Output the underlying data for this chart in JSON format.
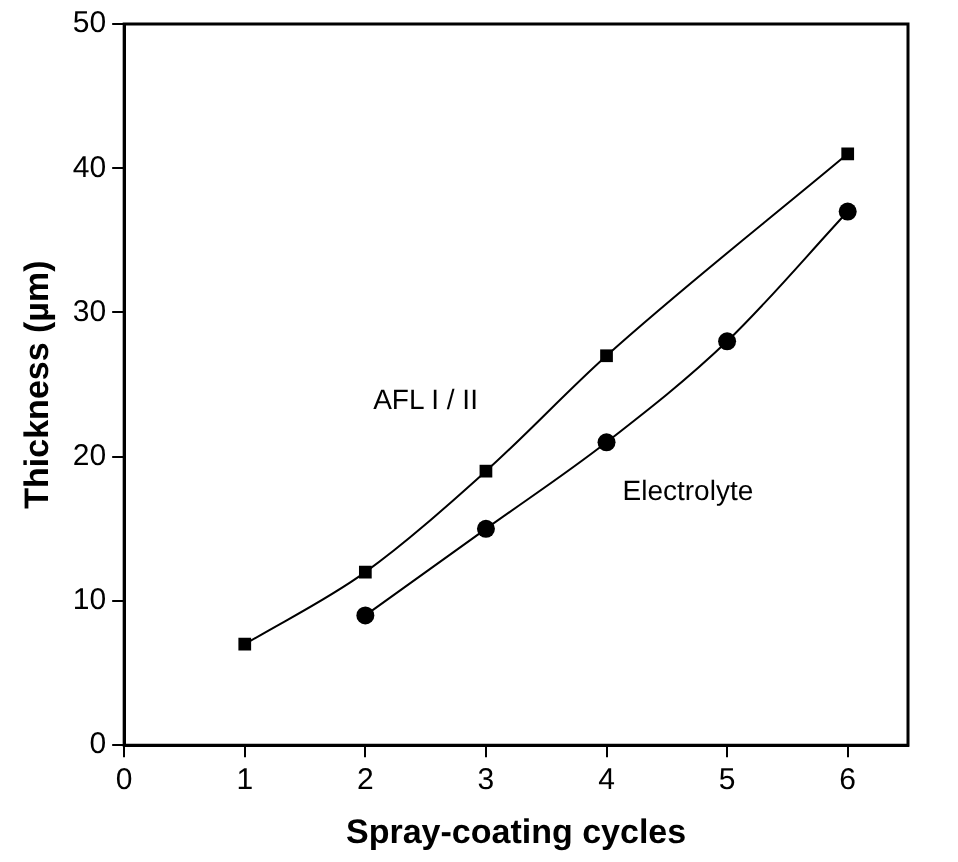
{
  "chart_data": {
    "type": "line",
    "xlabel": "Spray-coating cycles",
    "ylabel": "Thickness (µm)",
    "xlim": [
      0,
      6.5
    ],
    "xticks": [
      0,
      1,
      2,
      3,
      4,
      5,
      6
    ],
    "ylim": [
      0,
      50
    ],
    "yticks": [
      0,
      10,
      20,
      30,
      40,
      50
    ],
    "grid": false,
    "legend": false,
    "line_style": "solid",
    "series": [
      {
        "name": "AFL I / II",
        "color": "#000000",
        "marker": "square",
        "x": [
          1,
          2,
          3,
          4,
          6
        ],
        "values": [
          7,
          12,
          19,
          27,
          41
        ]
      },
      {
        "name": "Electrolyte",
        "color": "#000000",
        "marker": "circle",
        "x": [
          2,
          3,
          4,
          5,
          6
        ],
        "values": [
          9,
          15,
          21,
          28,
          37
        ]
      }
    ]
  }
}
